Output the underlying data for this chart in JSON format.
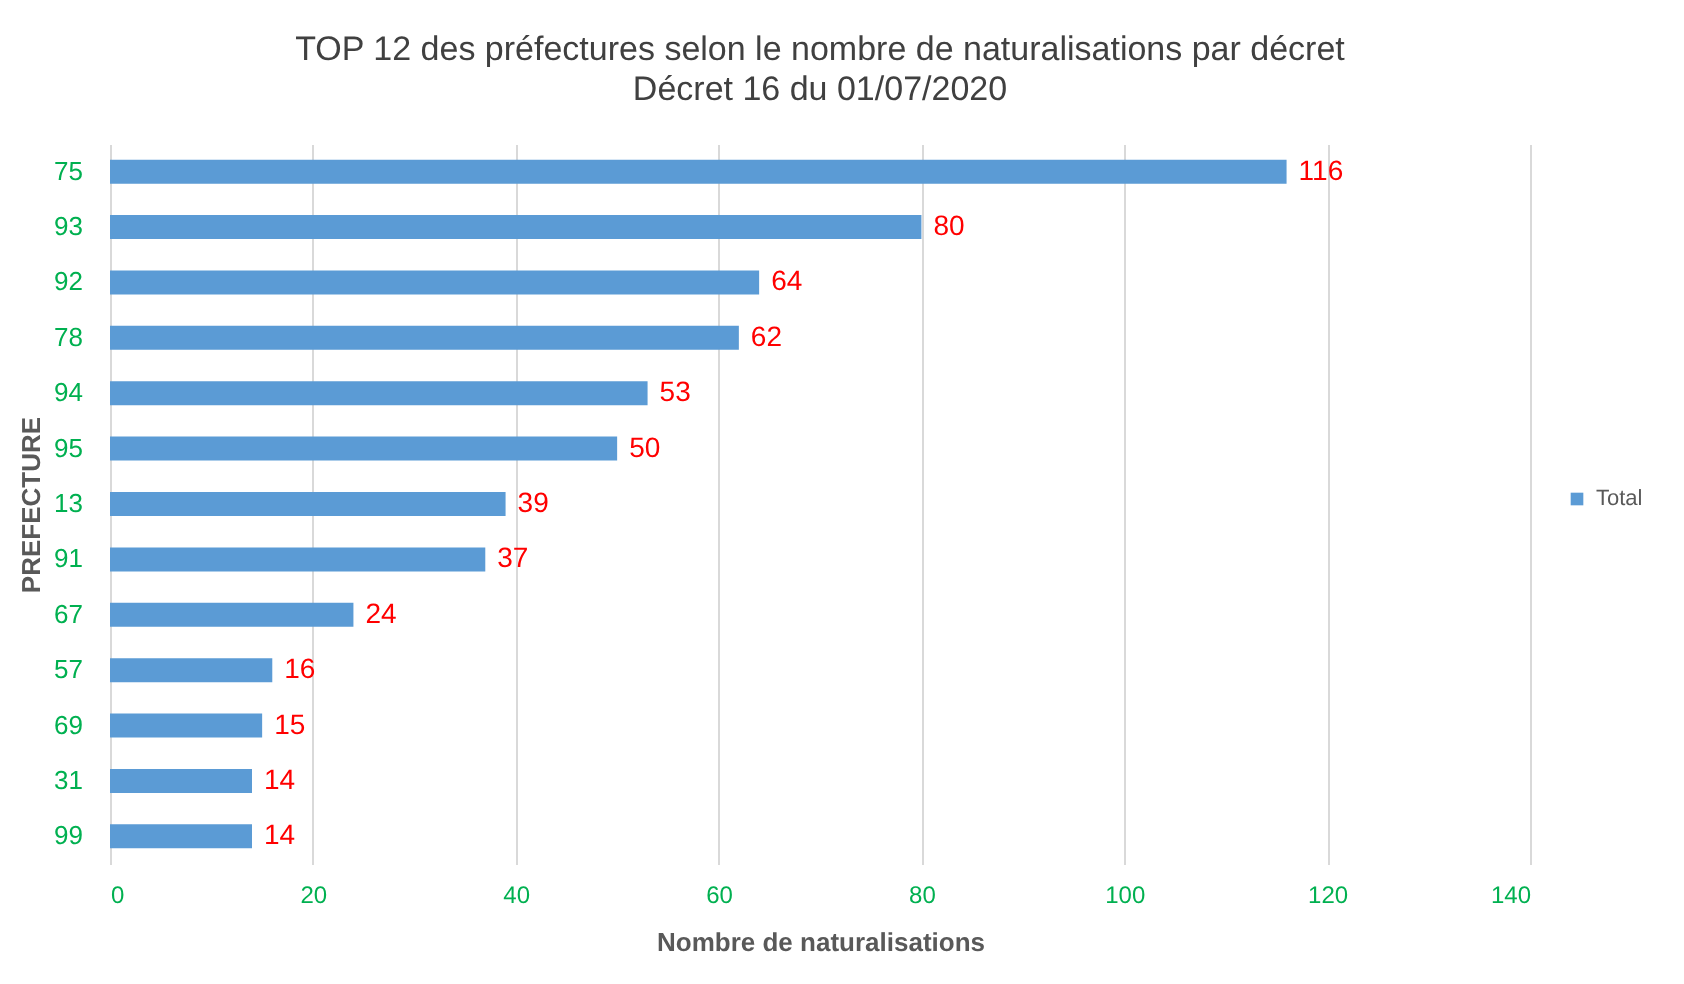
{
  "chart_data": {
    "type": "bar",
    "orientation": "horizontal",
    "title": "TOP 12 des préfectures selon le nombre de naturalisations par décret",
    "subtitle": "Décret 16 du 01/07/2020",
    "xlabel": "Nombre de naturalisations",
    "ylabel": "PREFECTURE",
    "categories": [
      "75",
      "93",
      "92",
      "78",
      "94",
      "95",
      "13",
      "91",
      "67",
      "57",
      "69",
      "31",
      "99"
    ],
    "series": [
      {
        "name": "Total",
        "color": "#5b9bd5",
        "values": [
          116,
          80,
          64,
          62,
          53,
          50,
          39,
          37,
          24,
          16,
          15,
          14,
          14
        ]
      }
    ],
    "xlim": [
      0,
      140
    ],
    "xticks": [
      0,
      20,
      40,
      60,
      80,
      100,
      120,
      140
    ],
    "grid": "x",
    "legend": "right",
    "data_labels": true
  }
}
